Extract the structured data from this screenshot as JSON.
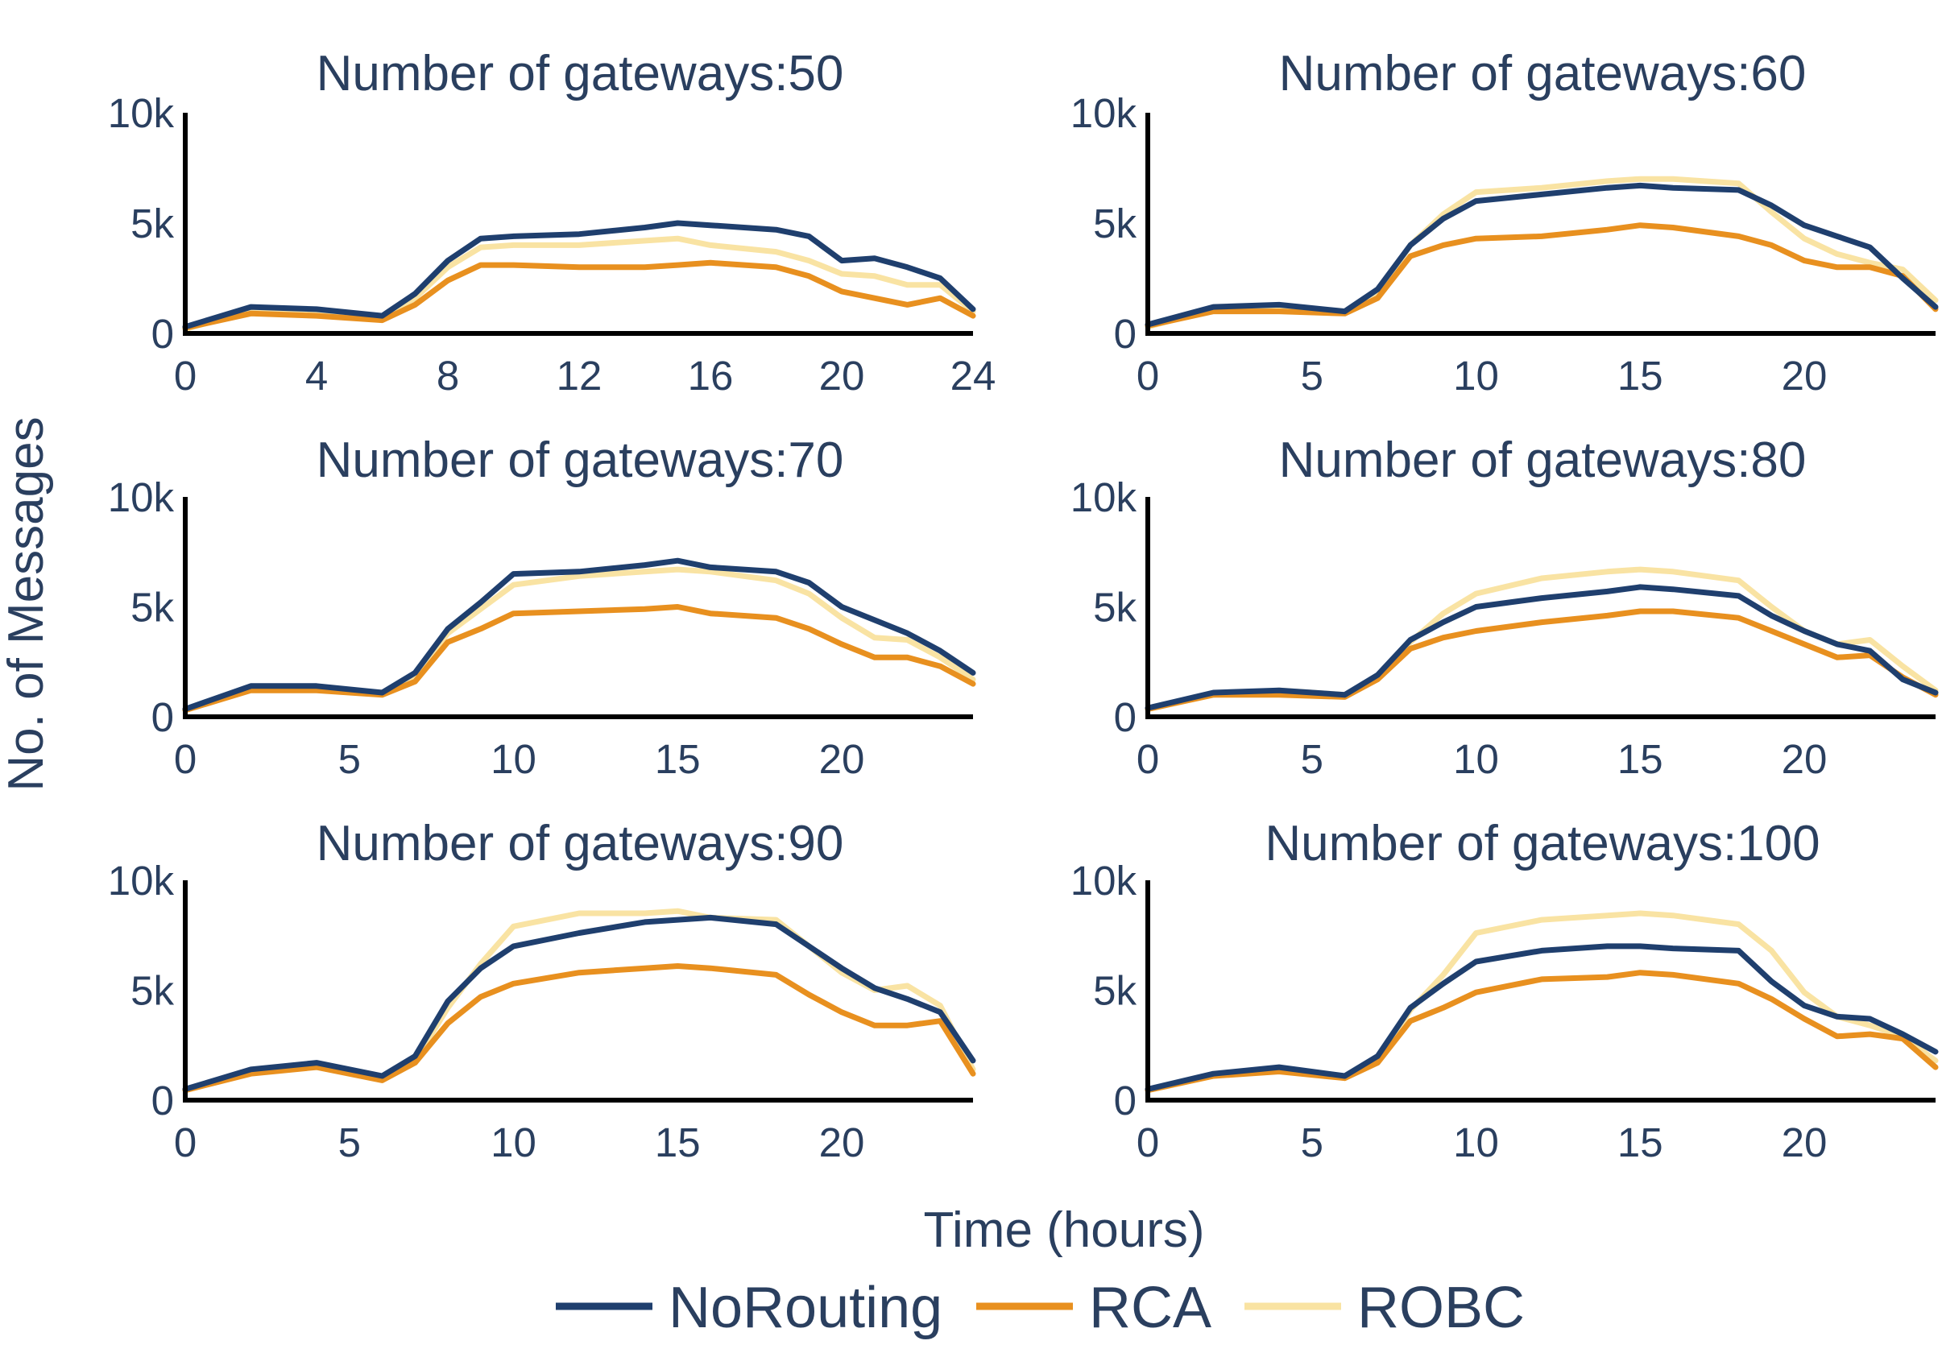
{
  "chart_data": {
    "type": "line",
    "xlabel": "Time (hours)",
    "ylabel": "No. of Messages",
    "legend": {
      "placement": "bottom-center",
      "entries": [
        "NoRouting",
        "RCA",
        "ROBC"
      ]
    },
    "colors": {
      "NoRouting": "#1f3f6e",
      "RCA": "#e8901f",
      "ROBC": "#f9e3a3",
      "text": "#2a3f5f",
      "axis": "#000000"
    },
    "grid": false,
    "panels": [
      {
        "title": "Number of gateways:50",
        "xlim": [
          0,
          24
        ],
        "ylim": [
          0,
          10000
        ],
        "xticks": [
          0,
          4,
          8,
          12,
          16,
          20,
          24
        ],
        "yticks": [
          0,
          5000,
          10000
        ],
        "ytick_labels": [
          "0",
          "5k",
          "10k"
        ],
        "x": [
          0,
          2,
          4,
          6,
          7,
          8,
          9,
          10,
          12,
          14,
          15,
          16,
          18,
          19,
          20,
          21,
          22,
          23,
          24
        ],
        "series": [
          {
            "name": "NoRouting",
            "values": [
              300,
              1200,
              1100,
              800,
              1800,
              3300,
              4300,
              4400,
              4500,
              4800,
              5000,
              4900,
              4700,
              4400,
              3300,
              3400,
              3000,
              2500,
              1100
            ]
          },
          {
            "name": "RCA",
            "values": [
              250,
              900,
              800,
              600,
              1300,
              2400,
              3100,
              3100,
              3000,
              3000,
              3100,
              3200,
              3000,
              2600,
              1900,
              1600,
              1300,
              1600,
              800
            ]
          },
          {
            "name": "ROBC",
            "values": [
              200,
              1000,
              900,
              700,
              1600,
              3000,
              3900,
              4000,
              4000,
              4200,
              4300,
              4000,
              3700,
              3300,
              2700,
              2600,
              2200,
              2200,
              1000
            ]
          }
        ]
      },
      {
        "title": "Number of gateways:60",
        "xlim": [
          0,
          24
        ],
        "ylim": [
          0,
          10000
        ],
        "xticks": [
          0,
          5,
          10,
          15,
          20
        ],
        "yticks": [
          0,
          5000,
          10000
        ],
        "ytick_labels": [
          "0",
          "5k",
          "10k"
        ],
        "x": [
          0,
          2,
          4,
          6,
          7,
          8,
          9,
          10,
          12,
          14,
          15,
          16,
          18,
          19,
          20,
          21,
          22,
          23,
          24
        ],
        "series": [
          {
            "name": "NoRouting",
            "values": [
              400,
              1200,
              1300,
              1000,
              2000,
              4000,
              5200,
              6000,
              6300,
              6600,
              6700,
              6600,
              6500,
              5800,
              4900,
              4400,
              3900,
              2500,
              1200
            ]
          },
          {
            "name": "RCA",
            "values": [
              350,
              1000,
              1000,
              900,
              1600,
              3500,
              4000,
              4300,
              4400,
              4700,
              4900,
              4800,
              4400,
              4000,
              3300,
              3000,
              3000,
              2600,
              1100
            ]
          },
          {
            "name": "ROBC",
            "values": [
              300,
              1100,
              1200,
              1000,
              1800,
              4000,
              5400,
              6400,
              6600,
              6900,
              7000,
              7000,
              6800,
              5500,
              4300,
              3600,
              3200,
              2900,
              1500
            ]
          }
        ]
      },
      {
        "title": "Number of gateways:70",
        "xlim": [
          0,
          24
        ],
        "ylim": [
          0,
          10000
        ],
        "xticks": [
          0,
          5,
          10,
          15,
          20
        ],
        "yticks": [
          0,
          5000,
          10000
        ],
        "ytick_labels": [
          "0",
          "5k",
          "10k"
        ],
        "x": [
          0,
          2,
          4,
          6,
          7,
          8,
          9,
          10,
          12,
          14,
          15,
          16,
          18,
          19,
          20,
          21,
          22,
          23,
          24
        ],
        "series": [
          {
            "name": "NoRouting",
            "values": [
              350,
              1400,
              1400,
              1100,
              2000,
              4000,
              5200,
              6500,
              6600,
              6900,
              7100,
              6800,
              6600,
              6100,
              5000,
              4400,
              3800,
              3000,
              2000
            ]
          },
          {
            "name": "RCA",
            "values": [
              300,
              1200,
              1200,
              1000,
              1600,
              3400,
              4000,
              4700,
              4800,
              4900,
              5000,
              4700,
              4500,
              4000,
              3300,
              2700,
              2700,
              2300,
              1500
            ]
          },
          {
            "name": "ROBC",
            "values": [
              300,
              1300,
              1300,
              1100,
              1900,
              3800,
              4900,
              6000,
              6400,
              6600,
              6700,
              6600,
              6200,
              5600,
              4500,
              3600,
              3500,
              2700,
              1700
            ]
          }
        ]
      },
      {
        "title": "Number of gateways:80",
        "xlim": [
          0,
          24
        ],
        "ylim": [
          0,
          10000
        ],
        "xticks": [
          0,
          5,
          10,
          15,
          20
        ],
        "yticks": [
          0,
          5000,
          10000
        ],
        "ytick_labels": [
          "0",
          "5k",
          "10k"
        ],
        "x": [
          0,
          2,
          4,
          6,
          7,
          8,
          9,
          10,
          12,
          14,
          15,
          16,
          18,
          19,
          20,
          21,
          22,
          23,
          24
        ],
        "series": [
          {
            "name": "NoRouting",
            "values": [
              400,
              1100,
              1200,
              1000,
              1900,
              3500,
              4300,
              5000,
              5400,
              5700,
              5900,
              5800,
              5500,
              4600,
              3900,
              3300,
              3000,
              1700,
              1100
            ]
          },
          {
            "name": "RCA",
            "values": [
              350,
              1000,
              1000,
              900,
              1700,
              3100,
              3600,
              3900,
              4300,
              4600,
              4800,
              4800,
              4500,
              3900,
              3300,
              2700,
              2800,
              1800,
              1000
            ]
          },
          {
            "name": "ROBC",
            "values": [
              350,
              1000,
              1200,
              1000,
              1700,
              3400,
              4700,
              5600,
              6300,
              6600,
              6700,
              6600,
              6200,
              5000,
              3900,
              3300,
              3500,
              2300,
              1200
            ]
          }
        ]
      },
      {
        "title": "Number of gateways:90",
        "xlim": [
          0,
          24
        ],
        "ylim": [
          0,
          10000
        ],
        "xticks": [
          0,
          5,
          10,
          15,
          20
        ],
        "yticks": [
          0,
          5000,
          10000
        ],
        "ytick_labels": [
          "0",
          "5k",
          "10k"
        ],
        "x": [
          0,
          2,
          4,
          6,
          7,
          8,
          9,
          10,
          12,
          14,
          15,
          16,
          18,
          19,
          20,
          21,
          22,
          23,
          24
        ],
        "series": [
          {
            "name": "NoRouting",
            "values": [
              500,
              1400,
              1700,
              1100,
              2000,
              4500,
              6000,
              7000,
              7600,
              8100,
              8200,
              8300,
              8000,
              7000,
              6000,
              5100,
              4600,
              4000,
              1800
            ]
          },
          {
            "name": "RCA",
            "values": [
              450,
              1200,
              1500,
              900,
              1700,
              3500,
              4700,
              5300,
              5800,
              6000,
              6100,
              6000,
              5700,
              4800,
              4000,
              3400,
              3400,
              3600,
              1200
            ]
          },
          {
            "name": "ROBC",
            "values": [
              450,
              1300,
              1600,
              1000,
              1800,
              4200,
              6200,
              7900,
              8500,
              8500,
              8600,
              8300,
              8200,
              7000,
              5800,
              5000,
              5200,
              4300,
              1400
            ]
          }
        ]
      },
      {
        "title": "Number of gateways:100",
        "xlim": [
          0,
          24
        ],
        "ylim": [
          0,
          10000
        ],
        "xticks": [
          0,
          5,
          10,
          15,
          20
        ],
        "yticks": [
          0,
          5000,
          10000
        ],
        "ytick_labels": [
          "0",
          "5k",
          "10k"
        ],
        "x": [
          0,
          2,
          4,
          6,
          7,
          8,
          9,
          10,
          12,
          14,
          15,
          16,
          18,
          19,
          20,
          21,
          22,
          23,
          24
        ],
        "series": [
          {
            "name": "NoRouting",
            "values": [
              500,
              1200,
              1500,
              1100,
              2000,
              4200,
              5300,
              6300,
              6800,
              7000,
              7000,
              6900,
              6800,
              5400,
              4300,
              3800,
              3700,
              3000,
              2200
            ]
          },
          {
            "name": "RCA",
            "values": [
              450,
              1100,
              1300,
              1000,
              1700,
              3600,
              4200,
              4900,
              5500,
              5600,
              5800,
              5700,
              5300,
              4600,
              3700,
              2900,
              3000,
              2800,
              1500
            ]
          },
          {
            "name": "ROBC",
            "values": [
              450,
              1100,
              1400,
              1000,
              1800,
              4100,
              5700,
              7600,
              8200,
              8400,
              8500,
              8400,
              8000,
              6800,
              4900,
              3800,
              3400,
              2900,
              1800
            ]
          }
        ]
      }
    ]
  }
}
